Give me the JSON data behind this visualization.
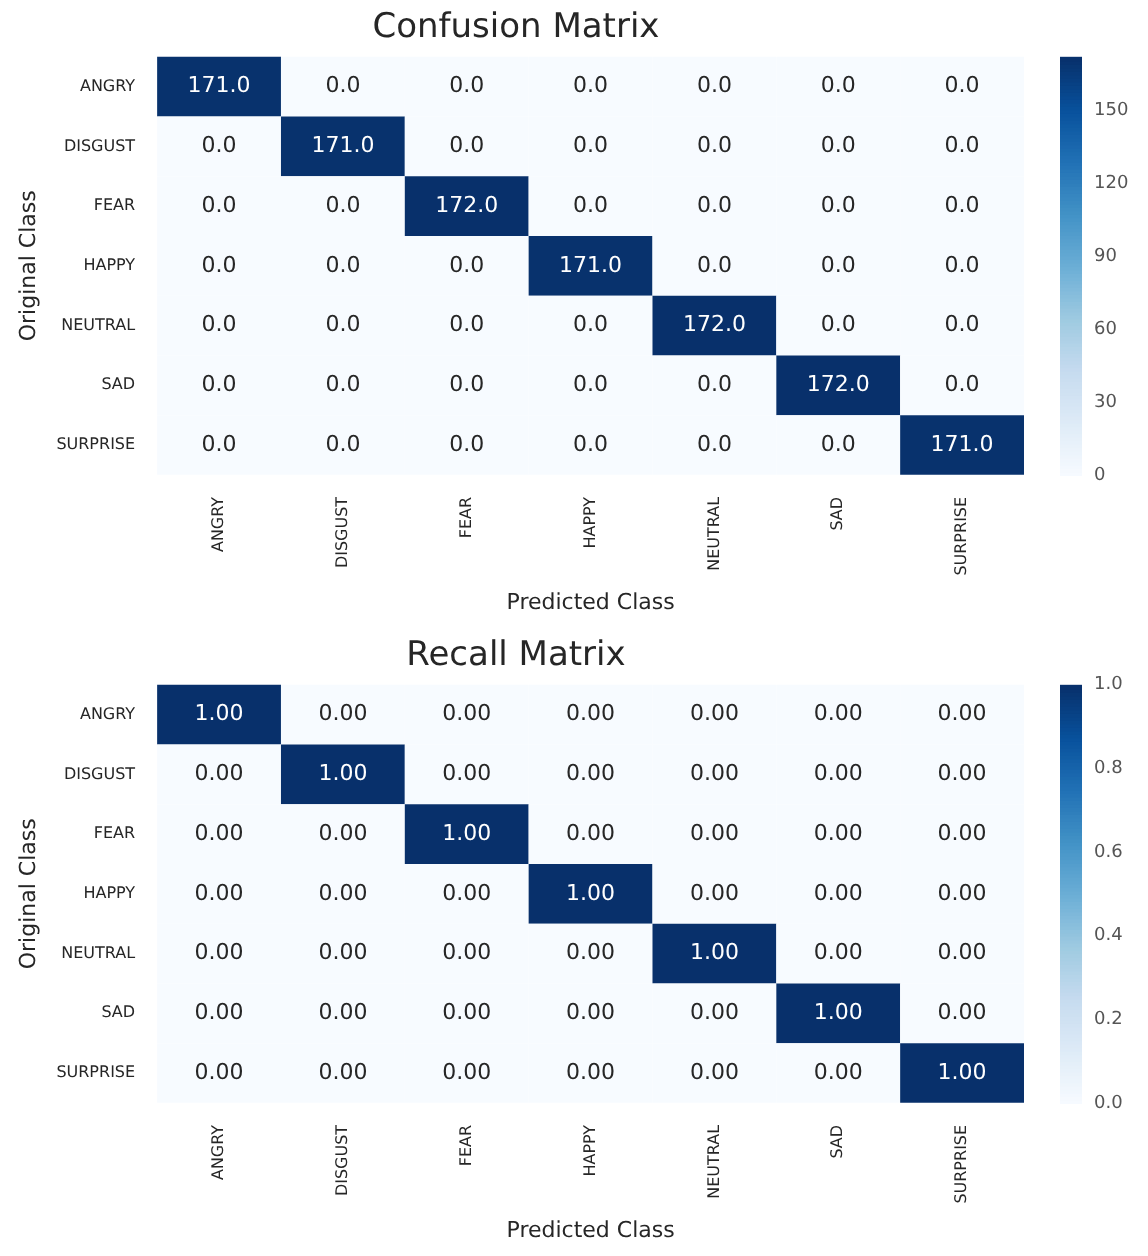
{
  "chart_data": [
    {
      "type": "heatmap",
      "title": "Confusion Matrix",
      "xlabel": "Predicted Class",
      "ylabel": "Original Class",
      "categories": [
        "ANGRY",
        "DISGUST",
        "FEAR",
        "HAPPY",
        "NEUTRAL",
        "SAD",
        "SURPRISE"
      ],
      "y_categories": [
        "ANGRY",
        "DISGUST",
        "FEAR",
        "HAPPY",
        "NEUTRAL",
        "SAD",
        "SURPRISE"
      ],
      "cells": [
        [
          171,
          0,
          0,
          0,
          0,
          0,
          0
        ],
        [
          0,
          171,
          0,
          0,
          0,
          0,
          0
        ],
        [
          0,
          0,
          172,
          0,
          0,
          0,
          0
        ],
        [
          0,
          0,
          0,
          171,
          0,
          0,
          0
        ],
        [
          0,
          0,
          0,
          0,
          172,
          0,
          0
        ],
        [
          0,
          0,
          0,
          0,
          0,
          172,
          0
        ],
        [
          0,
          0,
          0,
          0,
          0,
          0,
          171
        ]
      ],
      "cell_labels": [
        [
          "171.0",
          "0.0",
          "0.0",
          "0.0",
          "0.0",
          "0.0",
          "0.0"
        ],
        [
          "0.0",
          "171.0",
          "0.0",
          "0.0",
          "0.0",
          "0.0",
          "0.0"
        ],
        [
          "0.0",
          "0.0",
          "172.0",
          "0.0",
          "0.0",
          "0.0",
          "0.0"
        ],
        [
          "0.0",
          "0.0",
          "0.0",
          "171.0",
          "0.0",
          "0.0",
          "0.0"
        ],
        [
          "0.0",
          "0.0",
          "0.0",
          "0.0",
          "172.0",
          "0.0",
          "0.0"
        ],
        [
          "0.0",
          "0.0",
          "0.0",
          "0.0",
          "0.0",
          "172.0",
          "0.0"
        ],
        [
          "0.0",
          "0.0",
          "0.0",
          "0.0",
          "0.0",
          "0.0",
          "171.0"
        ]
      ],
      "clim": [
        0,
        172
      ],
      "cticks": [
        0,
        30,
        60,
        90,
        120,
        150
      ]
    },
    {
      "type": "heatmap",
      "title": "Recall Matrix",
      "xlabel": "Predicted Class",
      "ylabel": "Original Class",
      "categories": [
        "ANGRY",
        "DISGUST",
        "FEAR",
        "HAPPY",
        "NEUTRAL",
        "SAD",
        "SURPRISE"
      ],
      "y_categories": [
        "ANGRY",
        "DISGUST",
        "FEAR",
        "HAPPY",
        "NEUTRAL",
        "SAD",
        "SURPRISE"
      ],
      "cells": [
        [
          1,
          0,
          0,
          0,
          0,
          0,
          0
        ],
        [
          0,
          1,
          0,
          0,
          0,
          0,
          0
        ],
        [
          0,
          0,
          1,
          0,
          0,
          0,
          0
        ],
        [
          0,
          0,
          0,
          1,
          0,
          0,
          0
        ],
        [
          0,
          0,
          0,
          0,
          1,
          0,
          0
        ],
        [
          0,
          0,
          0,
          0,
          0,
          1,
          0
        ],
        [
          0,
          0,
          0,
          0,
          0,
          0,
          1
        ]
      ],
      "cell_labels": [
        [
          "1.00",
          "0.00",
          "0.00",
          "0.00",
          "0.00",
          "0.00",
          "0.00"
        ],
        [
          "0.00",
          "1.00",
          "0.00",
          "0.00",
          "0.00",
          "0.00",
          "0.00"
        ],
        [
          "0.00",
          "0.00",
          "1.00",
          "0.00",
          "0.00",
          "0.00",
          "0.00"
        ],
        [
          "0.00",
          "0.00",
          "0.00",
          "1.00",
          "0.00",
          "0.00",
          "0.00"
        ],
        [
          "0.00",
          "0.00",
          "0.00",
          "0.00",
          "1.00",
          "0.00",
          "0.00"
        ],
        [
          "0.00",
          "0.00",
          "0.00",
          "0.00",
          "0.00",
          "1.00",
          "0.00"
        ],
        [
          "0.00",
          "0.00",
          "0.00",
          "0.00",
          "0.00",
          "0.00",
          "1.00"
        ]
      ],
      "clim": [
        0,
        1
      ],
      "cticks": [
        {
          "value": 0,
          "label": "0.0"
        },
        {
          "value": 0.2,
          "label": "0.2"
        },
        {
          "value": 0.4,
          "label": "0.4"
        },
        {
          "value": 0.6,
          "label": "0.6"
        },
        {
          "value": 0.8,
          "label": "0.8"
        },
        {
          "value": 1,
          "label": "1.0"
        }
      ]
    }
  ]
}
